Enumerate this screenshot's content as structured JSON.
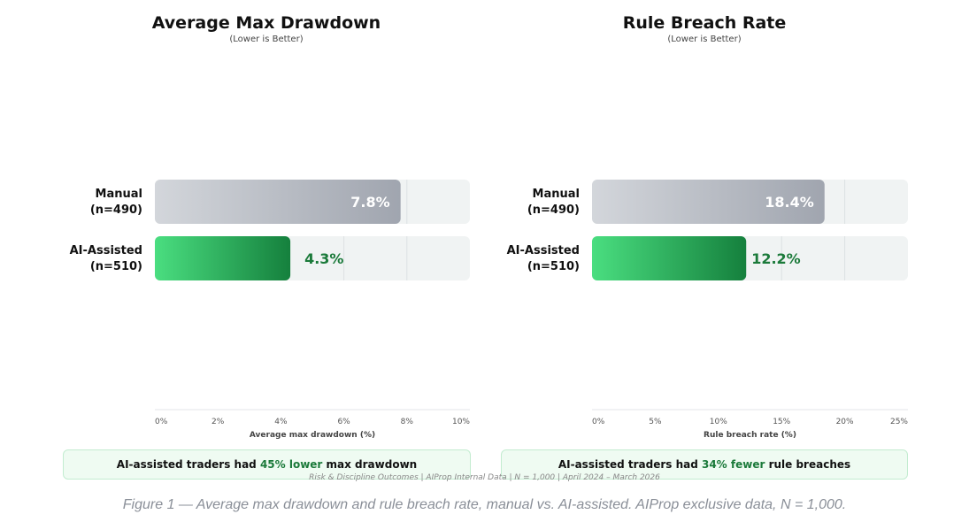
{
  "chart_data": [
    {
      "type": "bar",
      "orientation": "horizontal",
      "title": "Average Max Drawdown",
      "subtitle": "(Lower is Better)",
      "categories": [
        "Manual\n(n=490)",
        "AI-Assisted\n(n=510)"
      ],
      "values": [
        7.8,
        4.3
      ],
      "value_labels": [
        "7.8%",
        "4.3%"
      ],
      "xlabel": "Average max drawdown (%)",
      "xlim": [
        0,
        10
      ],
      "xticks": [
        0,
        2,
        4,
        6,
        8,
        10
      ],
      "xtick_labels": [
        "0%",
        "2%",
        "4%",
        "6%",
        "8%",
        "10%"
      ],
      "colors": [
        "#a6abb5",
        "#1f8a44"
      ]
    },
    {
      "type": "bar",
      "orientation": "horizontal",
      "title": "Rule Breach Rate",
      "subtitle": "(Lower is Better)",
      "categories": [
        "Manual\n(n=490)",
        "AI-Assisted\n(n=510)"
      ],
      "values": [
        18.4,
        12.2
      ],
      "value_labels": [
        "18.4%",
        "12.2%"
      ],
      "xlabel": "Rule breach rate (%)",
      "xlim": [
        0,
        25
      ],
      "xticks": [
        0,
        5,
        10,
        15,
        20,
        25
      ],
      "xtick_labels": [
        "0%",
        "5%",
        "10%",
        "15%",
        "20%",
        "25%"
      ],
      "colors": [
        "#a6abb5",
        "#1f8a44"
      ]
    }
  ],
  "callouts": [
    {
      "pre": "AI-assisted traders had ",
      "highlight": "45% lower",
      "post": " max drawdown"
    },
    {
      "pre": "AI-assisted traders had ",
      "highlight": "34% fewer",
      "post": " rule breaches"
    }
  ],
  "source_line": "Risk & Discipline Outcomes | AIProp Internal Data | N = 1,000 | April 2024 – March 2026",
  "caption": "Figure 1 — Average max drawdown and rule breach rate, manual vs. AI-assisted. AIProp exclusive data, N = 1,000.",
  "colors": {
    "manual_light": "#d3d6db",
    "manual_dark": "#a0a5af",
    "ai_light": "#4ade80",
    "ai_dark": "#15803d",
    "track": "#f0f3f3",
    "highlight_text": "#1b7a3a"
  }
}
